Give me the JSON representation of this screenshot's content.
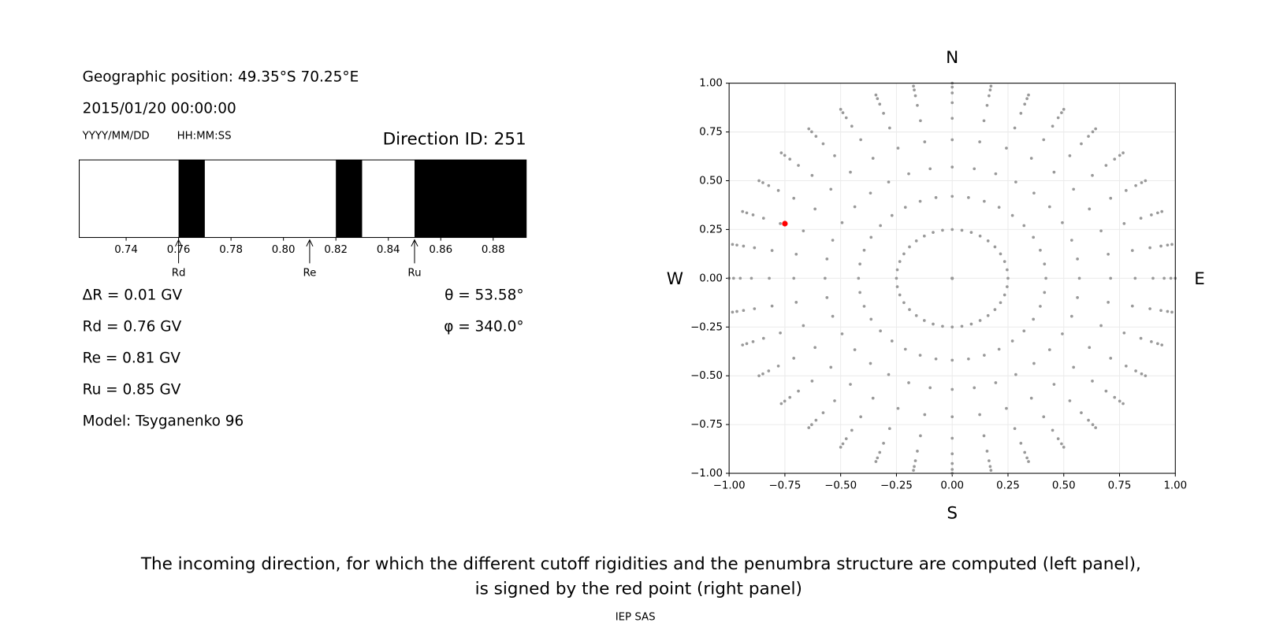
{
  "header": {
    "position": "Geographic position: 49.35°S 70.25°E",
    "datetime": "2015/01/20 00:00:00",
    "date_format": "YYYY/MM/DD",
    "time_format": "HH:MM:SS",
    "direction_id": "Direction ID: 251"
  },
  "chart_data": [
    {
      "type": "penumbra",
      "xlim": [
        0.7221,
        0.8926
      ],
      "xticks": [
        0.74,
        0.76,
        0.78,
        {
          "value": 0.8,
          "label": "0.80"
        },
        0.82,
        0.84,
        0.86,
        0.88
      ],
      "color": "#000000",
      "bands": [
        [
          0.76,
          0.77
        ],
        [
          0.82,
          0.83
        ],
        [
          0.85,
          0.8926
        ]
      ],
      "markers": {
        "labels": [
          "Rd",
          "Re",
          "Ru"
        ],
        "values": [
          0.76,
          0.81,
          0.85
        ]
      }
    },
    {
      "type": "scatter",
      "xlim": [
        -1,
        1
      ],
      "ylim": [
        -1,
        1
      ],
      "xticks": [
        {
          "value": -1,
          "label": "−1.00"
        },
        {
          "value": -0.75,
          "label": "−0.75"
        },
        {
          "value": -0.5,
          "label": "−0.50"
        },
        {
          "value": -0.25,
          "label": "−0.25"
        },
        {
          "value": 0,
          "label": "0.00"
        },
        {
          "value": 0.25,
          "label": "0.25"
        },
        {
          "value": 0.5,
          "label": "0.50"
        },
        {
          "value": 0.75,
          "label": "0.75"
        },
        {
          "value": 1,
          "label": "1.00"
        }
      ],
      "yticks": [
        {
          "value": -1,
          "label": "−1.00"
        },
        {
          "value": -0.75,
          "label": "−0.75"
        },
        {
          "value": -0.5,
          "label": "−0.50"
        },
        {
          "value": -0.25,
          "label": "−0.25"
        },
        {
          "value": 0,
          "label": "0.00"
        },
        {
          "value": 0.25,
          "label": "0.25"
        },
        {
          "value": 0.5,
          "label": "0.50"
        },
        {
          "value": 0.75,
          "label": "0.75"
        },
        {
          "value": 1,
          "label": "1.00"
        }
      ],
      "grid": true,
      "points": {
        "color": "#999999",
        "radii": [
          0,
          0.25,
          0.42,
          0.57,
          0.71,
          0.82,
          0.9,
          0.95,
          0.98,
          1.0
        ],
        "azimuths": [
          0,
          10,
          20,
          30,
          40,
          50,
          60,
          70,
          80,
          90,
          100,
          110,
          120,
          130,
          140,
          150,
          160,
          170,
          180,
          190,
          200,
          210,
          220,
          230,
          240,
          250,
          260,
          270,
          280,
          290,
          300,
          310,
          320,
          330,
          340,
          350
        ]
      },
      "selected": {
        "color": "#ff0000",
        "x": -0.75,
        "y": 0.28
      },
      "direction_labels": {
        "north": "N",
        "south": "S",
        "west": "W",
        "east": "E"
      }
    }
  ],
  "results": {
    "lines": [
      "ΔR = 0.01 GV",
      "Rd = 0.76 GV",
      "Re = 0.81 GV",
      "Ru = 0.85 GV",
      "Model: Tsyganenko 96"
    ],
    "theta": "θ = 53.58°",
    "phi": "φ = 340.0°"
  },
  "caption": [
    "The incoming direction, for which the different cutoff rigidities and the penumbra structure are computed (left panel),",
    "is signed by the red point (right panel)"
  ],
  "footer": "IEP SAS"
}
